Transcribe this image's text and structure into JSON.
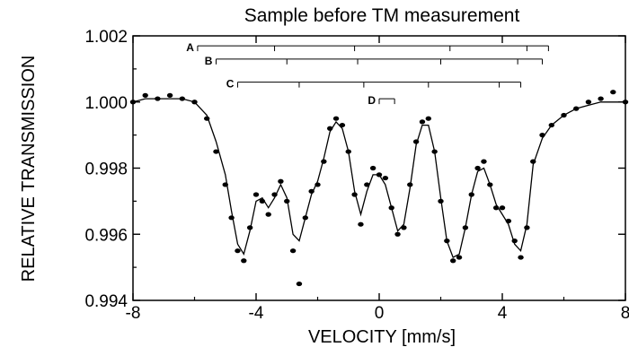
{
  "chart_data": {
    "type": "scatter",
    "title": "Sample before TM measurement",
    "xlabel": "VELOCITY [mm/s]",
    "ylabel": "RELATIVE TRANSMISSION",
    "xlim": [
      -8,
      8
    ],
    "ylim": [
      0.994,
      1.002
    ],
    "x_ticks": [
      -8,
      -4,
      0,
      4,
      8
    ],
    "y_ticks": [
      0.994,
      0.996,
      0.998,
      1.0,
      1.002
    ],
    "x_tick_labels": [
      "-8",
      "-4",
      "0",
      "4",
      "8"
    ],
    "y_tick_labels": [
      "0.994",
      "0.996",
      "0.998",
      "1.000",
      "1.002"
    ],
    "grid": false,
    "legend": "none",
    "colors": {
      "data": "#000000",
      "fit": "#000000",
      "background": "#ffffff"
    },
    "series": [
      {
        "type": "scatter",
        "x": [
          -8.0,
          -7.6,
          -7.2,
          -6.8,
          -6.4,
          -6.0,
          -5.6,
          -5.3,
          -5.0,
          -4.8,
          -4.6,
          -4.4,
          -4.2,
          -4.0,
          -3.8,
          -3.6,
          -3.4,
          -3.2,
          -3.0,
          -2.8,
          -2.6,
          -2.4,
          -2.2,
          -2.0,
          -1.8,
          -1.6,
          -1.4,
          -1.2,
          -1.0,
          -0.8,
          -0.6,
          -0.4,
          -0.2,
          0.0,
          0.2,
          0.4,
          0.6,
          0.8,
          1.0,
          1.2,
          1.4,
          1.6,
          1.8,
          2.0,
          2.2,
          2.4,
          2.6,
          2.8,
          3.0,
          3.2,
          3.4,
          3.6,
          3.8,
          4.0,
          4.2,
          4.4,
          4.6,
          4.8,
          5.0,
          5.3,
          5.6,
          6.0,
          6.4,
          6.8,
          7.2,
          7.6,
          8.0
        ],
        "y": [
          1.0,
          1.0002,
          1.0001,
          1.0002,
          1.0001,
          1.0,
          0.9995,
          0.9985,
          0.9975,
          0.9965,
          0.9955,
          0.9952,
          0.9962,
          0.9972,
          0.997,
          0.9966,
          0.9972,
          0.9976,
          0.997,
          0.9955,
          0.9945,
          0.9965,
          0.9973,
          0.9975,
          0.9982,
          0.9992,
          0.9995,
          0.9993,
          0.9985,
          0.9972,
          0.9963,
          0.9975,
          0.998,
          0.9978,
          0.9977,
          0.9968,
          0.996,
          0.9962,
          0.9975,
          0.9988,
          0.9994,
          0.9995,
          0.9985,
          0.997,
          0.9958,
          0.9952,
          0.9953,
          0.9962,
          0.9972,
          0.998,
          0.9982,
          0.9975,
          0.9968,
          0.9968,
          0.9964,
          0.9958,
          0.9953,
          0.9962,
          0.9982,
          0.999,
          0.9993,
          0.9996,
          0.9998,
          1.0,
          1.0001,
          1.0003,
          1.0
        ]
      },
      {
        "type": "line",
        "x": [
          -8.0,
          -7.6,
          -7.2,
          -6.8,
          -6.4,
          -6.0,
          -5.6,
          -5.3,
          -5.0,
          -4.8,
          -4.6,
          -4.4,
          -4.2,
          -4.0,
          -3.8,
          -3.6,
          -3.4,
          -3.2,
          -3.0,
          -2.8,
          -2.6,
          -2.4,
          -2.2,
          -2.0,
          -1.8,
          -1.6,
          -1.4,
          -1.2,
          -1.0,
          -0.8,
          -0.6,
          -0.4,
          -0.2,
          0.0,
          0.2,
          0.4,
          0.6,
          0.8,
          1.0,
          1.2,
          1.4,
          1.6,
          1.8,
          2.0,
          2.2,
          2.4,
          2.6,
          2.8,
          3.0,
          3.2,
          3.4,
          3.6,
          3.8,
          4.0,
          4.2,
          4.4,
          4.6,
          4.8,
          5.0,
          5.3,
          5.6,
          6.0,
          6.4,
          6.8,
          7.2,
          7.6,
          8.0
        ],
        "y": [
          1.0,
          1.0001,
          1.0001,
          1.0001,
          1.0001,
          1.0,
          0.9996,
          0.9988,
          0.9978,
          0.9967,
          0.9957,
          0.9954,
          0.9961,
          0.997,
          0.9971,
          0.9968,
          0.9971,
          0.9975,
          0.9971,
          0.996,
          0.9958,
          0.9965,
          0.9972,
          0.9976,
          0.9983,
          0.9991,
          0.9994,
          0.9992,
          0.9985,
          0.9973,
          0.9966,
          0.9973,
          0.9978,
          0.9978,
          0.9975,
          0.9968,
          0.9961,
          0.9963,
          0.9974,
          0.9987,
          0.9993,
          0.9993,
          0.9985,
          0.9971,
          0.9958,
          0.9953,
          0.9954,
          0.9962,
          0.9972,
          0.9979,
          0.998,
          0.9975,
          0.9969,
          0.9966,
          0.9963,
          0.9957,
          0.9955,
          0.9963,
          0.9981,
          0.9989,
          0.9993,
          0.9996,
          0.9998,
          0.9999,
          1.0,
          1.0,
          1.0
        ]
      }
    ],
    "annotations": [
      {
        "label": "A",
        "range": [
          -5.9,
          5.5
        ],
        "ticks": [
          -5.9,
          -3.4,
          -0.8,
          2.3,
          4.8,
          5.5
        ],
        "y": 1.0017
      },
      {
        "label": "B",
        "range": [
          -5.3,
          5.3
        ],
        "ticks": [
          -5.3,
          -3.0,
          -0.7,
          2.0,
          4.5,
          5.3
        ],
        "y": 1.0013
      },
      {
        "label": "C",
        "range": [
          -4.6,
          4.6
        ],
        "ticks": [
          -4.6,
          -2.6,
          -0.5,
          1.6,
          3.9,
          4.6
        ],
        "y": 1.0006
      },
      {
        "label": "D",
        "range": [
          0.0,
          0.5
        ],
        "ticks": [
          0.0,
          0.5
        ],
        "y": 1.0001
      }
    ]
  }
}
